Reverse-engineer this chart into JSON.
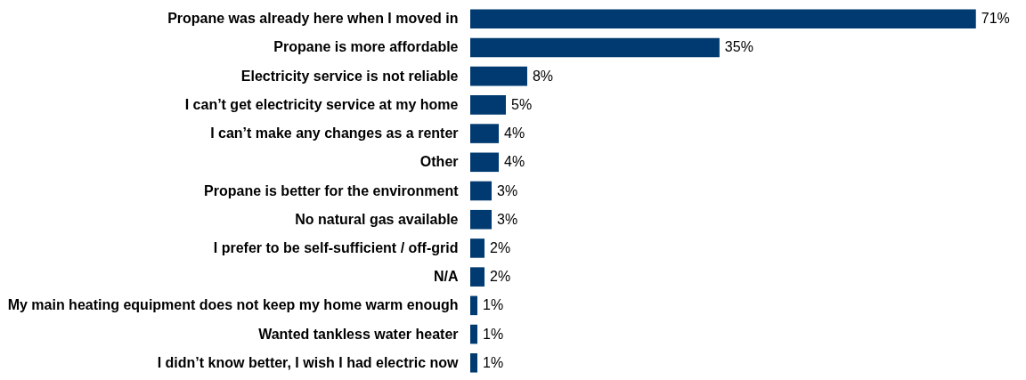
{
  "chart_data": {
    "type": "bar",
    "orientation": "horizontal",
    "categories": [
      "Propane was already here when I moved in",
      "Propane is more affordable",
      "Electricity service is not reliable",
      "I can’t get electricity service at my home",
      "I can’t make any changes as a renter",
      "Other",
      "Propane is better for the environment",
      "No natural gas available",
      "I prefer to be self-sufficient / off-grid",
      "N/A",
      "My main heating equipment does not keep my home warm enough",
      "Wanted tankless water heater",
      "I didn’t know better, I wish I had electric now"
    ],
    "values": [
      71,
      35,
      8,
      5,
      4,
      4,
      3,
      3,
      2,
      2,
      1,
      1,
      1
    ],
    "value_labels": [
      "71%",
      "35%",
      "8%",
      "5%",
      "4%",
      "4%",
      "3%",
      "3%",
      "2%",
      "2%",
      "1%",
      "1%",
      "1%"
    ],
    "color": "#003a70"
  }
}
